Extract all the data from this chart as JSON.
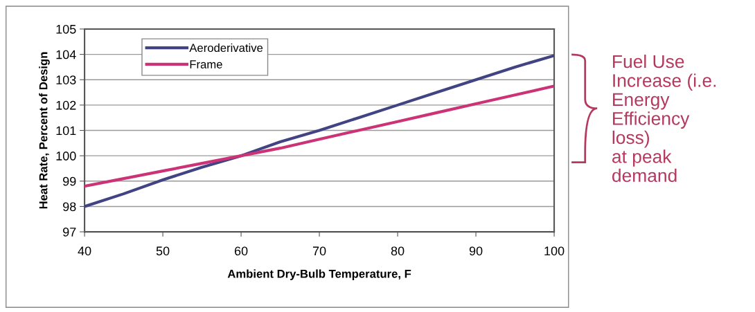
{
  "chart_data": {
    "type": "line",
    "xlabel": "Ambient Dry-Bulb Temperature, F",
    "ylabel": "Heat Rate, Percent of Design",
    "x": [
      40,
      45,
      50,
      55,
      60,
      65,
      70,
      75,
      80,
      85,
      90,
      95,
      100
    ],
    "series": [
      {
        "name": "Aeroderivative",
        "color": "#414383",
        "values": [
          98.0,
          98.5,
          99.05,
          99.55,
          100.0,
          100.55,
          101.0,
          101.5,
          102.0,
          102.5,
          103.0,
          103.5,
          103.95
        ]
      },
      {
        "name": "Frame",
        "color": "#cc3377",
        "values": [
          98.8,
          99.1,
          99.4,
          99.7,
          100.0,
          100.3,
          100.65,
          101.0,
          101.35,
          101.7,
          102.05,
          102.4,
          102.75
        ]
      }
    ],
    "xlim": [
      40,
      100
    ],
    "xticks": [
      40,
      50,
      60,
      70,
      80,
      90,
      100
    ],
    "ylim": [
      97,
      105
    ],
    "yticks": [
      97,
      98,
      99,
      100,
      101,
      102,
      103,
      104,
      105
    ],
    "grid": "y",
    "legend": "top left",
    "marker": "none",
    "line_style": "solid",
    "annotations": [
      "Fuel Use\nIncrease (i.e.\nEnergy\nEfficiency\nloss)\nat peak\ndemand"
    ]
  }
}
